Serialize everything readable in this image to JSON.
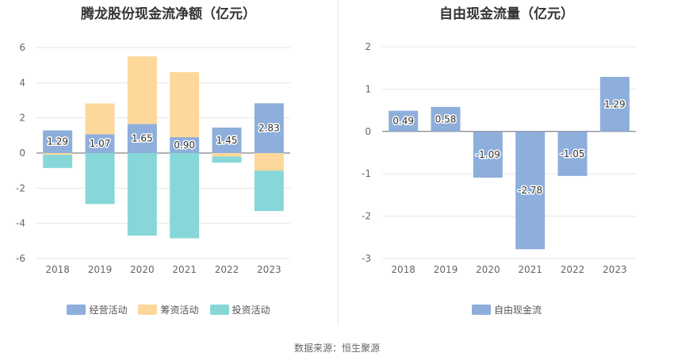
{
  "chart_data": [
    {
      "type": "bar",
      "stacked": true,
      "title": "腾龙股份现金流净额（亿元）",
      "categories": [
        "2018",
        "2019",
        "2020",
        "2021",
        "2022",
        "2023"
      ],
      "ylim": [
        -6,
        6
      ],
      "yticks": [
        6,
        4,
        2,
        0,
        -2,
        -4,
        -6
      ],
      "grid": true,
      "legend_position": "bottom",
      "series": [
        {
          "name": "经营活动",
          "color": "#8eaedb",
          "values": [
            1.29,
            1.07,
            1.65,
            0.9,
            1.45,
            2.83
          ],
          "labels": [
            "1.29",
            "1.07",
            "1.65",
            "0.90",
            "1.45",
            "2.83"
          ]
        },
        {
          "name": "筹资活动",
          "color": "#fdd89a",
          "values": [
            -0.1,
            1.75,
            3.85,
            3.7,
            -0.2,
            -1.0
          ]
        },
        {
          "name": "投资活动",
          "color": "#87d7d8",
          "values": [
            -0.75,
            -2.9,
            -4.7,
            -4.85,
            -0.35,
            -2.3
          ]
        }
      ]
    },
    {
      "type": "bar",
      "title": "自由现金流量（亿元）",
      "categories": [
        "2018",
        "2019",
        "2020",
        "2021",
        "2022",
        "2023"
      ],
      "ylim": [
        -3,
        2
      ],
      "yticks": [
        2,
        1,
        0,
        -1,
        -2,
        -3
      ],
      "grid": true,
      "legend_position": "bottom",
      "series": [
        {
          "name": "自由现金流",
          "color": "#8eaedb",
          "values": [
            0.49,
            0.58,
            -1.09,
            -2.78,
            -1.05,
            1.29
          ],
          "labels": [
            "0.49",
            "0.58",
            "-1.09",
            "-2.78",
            "-1.05",
            "1.29"
          ]
        }
      ]
    }
  ],
  "footer": {
    "source": "数据来源：恒生聚源"
  }
}
